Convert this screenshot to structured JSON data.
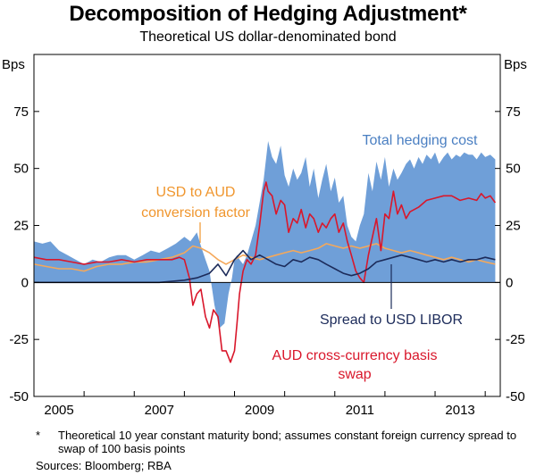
{
  "header": {
    "title": "Decomposition of Hedging Adjustment*",
    "subtitle": "Theoretical US dollar-denominated bond"
  },
  "footer": {
    "note_marker": "*",
    "note": "Theoretical 10 year constant maturity bond; assumes constant foreign currency spread to swap of 100 basis points",
    "sources": "Sources: Bloomberg; RBA"
  },
  "colors": {
    "total": "#6f9fd8",
    "usd_to_aud": "#f5a85a",
    "basis_swap": "#d9172b",
    "libor": "#1c2b5a",
    "text": "#000000"
  },
  "chart_data": {
    "type": "line",
    "yunit_left": "Bps",
    "yunit_right": "Bps",
    "ylim": [
      -50,
      100
    ],
    "yticks": [
      -50,
      -25,
      0,
      25,
      50,
      75
    ],
    "xlim": [
      2004.5,
      2013.8
    ],
    "xticks": [
      {
        "value": 2005,
        "label": "2005"
      },
      {
        "value": 2007,
        "label": "2007"
      },
      {
        "value": 2009,
        "label": "2009"
      },
      {
        "value": 2011,
        "label": "2011"
      },
      {
        "value": 2013,
        "label": "2013"
      }
    ],
    "year_dividers": [
      2005.5,
      2006.5,
      2007.5,
      2008.5,
      2009.5,
      2010.5,
      2011.5,
      2012.5,
      2013.5
    ],
    "grid": false,
    "annotations": {
      "total": "Total hedging cost",
      "usd_to_aud_line1": "USD to AUD",
      "usd_to_aud_line2": "conversion factor",
      "libor": "Spread to USD LIBOR",
      "basis_line1": "AUD cross-currency basis",
      "basis_line2": "swap"
    },
    "series": [
      {
        "name": "Total hedging cost",
        "style": "area",
        "x": [
          2004.5,
          2004.67,
          2004.83,
          2005.0,
          2005.17,
          2005.33,
          2005.5,
          2005.67,
          2005.83,
          2006.0,
          2006.17,
          2006.33,
          2006.5,
          2006.67,
          2006.83,
          2007.0,
          2007.17,
          2007.33,
          2007.5,
          2007.62,
          2007.75,
          2007.83,
          2007.92,
          2008.0,
          2008.1,
          2008.2,
          2008.3,
          2008.38,
          2008.45,
          2008.5,
          2008.55,
          2008.6,
          2008.67,
          2008.75,
          2008.83,
          2008.92,
          2009.0,
          2009.08,
          2009.17,
          2009.25,
          2009.33,
          2009.42,
          2009.5,
          2009.58,
          2009.67,
          2009.75,
          2009.83,
          2009.92,
          2010.0,
          2010.08,
          2010.17,
          2010.25,
          2010.33,
          2010.42,
          2010.5,
          2010.58,
          2010.67,
          2010.75,
          2010.83,
          2010.92,
          2011.0,
          2011.08,
          2011.17,
          2011.25,
          2011.33,
          2011.42,
          2011.5,
          2011.58,
          2011.67,
          2011.75,
          2011.83,
          2011.92,
          2012.0,
          2012.08,
          2012.17,
          2012.25,
          2012.33,
          2012.42,
          2012.5,
          2012.58,
          2012.67,
          2012.75,
          2012.83,
          2012.92,
          2013.0,
          2013.08,
          2013.17,
          2013.25,
          2013.33,
          2013.42,
          2013.5,
          2013.6,
          2013.7
        ],
        "y": [
          18,
          17,
          18,
          14,
          12,
          10,
          8,
          10,
          9,
          11,
          12,
          12,
          10,
          12,
          14,
          13,
          15,
          17,
          20,
          18,
          22,
          16,
          10,
          5,
          -10,
          -20,
          -18,
          -5,
          2,
          10,
          12,
          10,
          8,
          12,
          18,
          25,
          35,
          45,
          62,
          55,
          52,
          60,
          47,
          42,
          50,
          45,
          48,
          55,
          42,
          50,
          37,
          45,
          52,
          40,
          46,
          35,
          38,
          25,
          20,
          18,
          25,
          30,
          48,
          40,
          53,
          45,
          55,
          42,
          50,
          45,
          48,
          52,
          54,
          50,
          55,
          52,
          56,
          54,
          57,
          52,
          55,
          57,
          54,
          56,
          55,
          57,
          56,
          56,
          54,
          57,
          55,
          56,
          54
        ]
      },
      {
        "name": "USD to AUD conversion factor",
        "style": "line",
        "x": [
          2004.5,
          2004.75,
          2005.0,
          2005.25,
          2005.5,
          2005.75,
          2006.0,
          2006.25,
          2006.5,
          2006.75,
          2007.0,
          2007.25,
          2007.5,
          2007.67,
          2007.83,
          2008.0,
          2008.17,
          2008.33,
          2008.5,
          2008.67,
          2008.83,
          2009.0,
          2009.17,
          2009.33,
          2009.5,
          2009.67,
          2009.83,
          2010.0,
          2010.17,
          2010.33,
          2010.5,
          2010.67,
          2010.83,
          2011.0,
          2011.17,
          2011.33,
          2011.5,
          2011.67,
          2011.83,
          2012.0,
          2012.17,
          2012.33,
          2012.5,
          2012.67,
          2012.83,
          2013.0,
          2013.17,
          2013.33,
          2013.5,
          2013.7
        ],
        "y": [
          8,
          7,
          6,
          6,
          5,
          7,
          8,
          8,
          9,
          9,
          10,
          11,
          13,
          16,
          15,
          13,
          10,
          8,
          10,
          12,
          11,
          10,
          11,
          12,
          13,
          14,
          13,
          14,
          15,
          17,
          16,
          15,
          16,
          15,
          16,
          17,
          15,
          14,
          13,
          14,
          13,
          12,
          11,
          10,
          11,
          10,
          9,
          10,
          9,
          8
        ]
      },
      {
        "name": "AUD cross-currency basis swap",
        "style": "line",
        "x": [
          2004.5,
          2004.75,
          2005.0,
          2005.25,
          2005.5,
          2005.75,
          2006.0,
          2006.25,
          2006.5,
          2006.75,
          2007.0,
          2007.25,
          2007.4,
          2007.5,
          2007.6,
          2007.67,
          2007.75,
          2007.83,
          2007.92,
          2008.0,
          2008.08,
          2008.17,
          2008.25,
          2008.33,
          2008.42,
          2008.5,
          2008.55,
          2008.6,
          2008.67,
          2008.75,
          2008.83,
          2008.92,
          2009.0,
          2009.08,
          2009.13,
          2009.17,
          2009.25,
          2009.33,
          2009.42,
          2009.5,
          2009.58,
          2009.67,
          2009.75,
          2009.83,
          2009.92,
          2010.0,
          2010.08,
          2010.17,
          2010.25,
          2010.33,
          2010.42,
          2010.5,
          2010.58,
          2010.67,
          2010.75,
          2010.83,
          2010.92,
          2011.0,
          2011.08,
          2011.17,
          2011.25,
          2011.33,
          2011.42,
          2011.5,
          2011.58,
          2011.67,
          2011.75,
          2011.83,
          2011.92,
          2012.0,
          2012.17,
          2012.33,
          2012.5,
          2012.67,
          2012.83,
          2013.0,
          2013.17,
          2013.33,
          2013.42,
          2013.5,
          2013.6,
          2013.7
        ],
        "y": [
          11,
          10,
          10,
          9,
          8,
          9,
          9,
          10,
          9,
          10,
          10,
          10,
          11,
          10,
          2,
          -10,
          -5,
          -3,
          -15,
          -20,
          -12,
          -15,
          -30,
          -30,
          -35,
          -30,
          -18,
          -5,
          5,
          10,
          8,
          12,
          25,
          40,
          44,
          40,
          38,
          30,
          36,
          34,
          22,
          28,
          26,
          32,
          24,
          30,
          28,
          22,
          26,
          24,
          28,
          30,
          22,
          26,
          18,
          12,
          5,
          2,
          0,
          12,
          20,
          28,
          14,
          30,
          28,
          40,
          30,
          34,
          28,
          31,
          33,
          36,
          37,
          38,
          38,
          36,
          37,
          36,
          39,
          37,
          38,
          35
        ]
      },
      {
        "name": "Spread to USD LIBOR",
        "style": "line",
        "x": [
          2004.5,
          2005.0,
          2005.5,
          2006.0,
          2006.5,
          2007.0,
          2007.5,
          2007.75,
          2008.0,
          2008.17,
          2008.33,
          2008.5,
          2008.67,
          2008.83,
          2009.0,
          2009.17,
          2009.33,
          2009.5,
          2009.67,
          2009.83,
          2010.0,
          2010.17,
          2010.33,
          2010.5,
          2010.67,
          2010.83,
          2011.0,
          2011.17,
          2011.33,
          2011.5,
          2011.67,
          2011.83,
          2012.0,
          2012.17,
          2012.33,
          2012.5,
          2012.67,
          2012.83,
          2013.0,
          2013.17,
          2013.33,
          2013.5,
          2013.7
        ],
        "y": [
          0,
          0,
          0,
          0,
          0,
          0,
          1,
          2,
          4,
          8,
          3,
          10,
          14,
          10,
          12,
          10,
          8,
          7,
          10,
          9,
          11,
          10,
          8,
          6,
          4,
          3,
          4,
          6,
          9,
          10,
          11,
          12,
          11,
          10,
          9,
          10,
          9,
          10,
          9,
          10,
          10,
          11,
          10
        ]
      }
    ]
  }
}
